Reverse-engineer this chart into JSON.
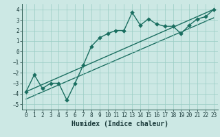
{
  "xlabel": "Humidex (Indice chaleur)",
  "bg_color": "#cce8e4",
  "grid_color": "#99ccc4",
  "line_color": "#1a6e60",
  "xlim": [
    -0.5,
    23.5
  ],
  "ylim": [
    -5.5,
    4.5
  ],
  "yticks": [
    -5,
    -4,
    -3,
    -2,
    -1,
    0,
    1,
    2,
    3,
    4
  ],
  "xticks": [
    0,
    1,
    2,
    3,
    4,
    5,
    6,
    7,
    8,
    9,
    10,
    11,
    12,
    13,
    14,
    15,
    16,
    17,
    18,
    19,
    20,
    21,
    22,
    23
  ],
  "curve_x": [
    0,
    1,
    2,
    3,
    4,
    5,
    6,
    7,
    8,
    9,
    10,
    11,
    12,
    13,
    14,
    15,
    16,
    17,
    18,
    19,
    20,
    21,
    22,
    23
  ],
  "curve_y": [
    -3.8,
    -2.2,
    -3.5,
    -3.0,
    -3.0,
    -4.6,
    -3.0,
    -1.3,
    0.5,
    1.3,
    1.7,
    2.0,
    2.0,
    3.7,
    2.5,
    3.1,
    2.6,
    2.4,
    2.4,
    1.7,
    2.5,
    3.1,
    3.3,
    4.0
  ],
  "reg_line_x": [
    0,
    23
  ],
  "reg_line_y": [
    -3.8,
    4.0
  ],
  "reg2_line_x": [
    0,
    23
  ],
  "reg2_line_y": [
    -4.5,
    3.2
  ],
  "marker_size": 3,
  "line_width": 1.0,
  "tick_fontsize": 5.5,
  "label_fontsize": 7
}
